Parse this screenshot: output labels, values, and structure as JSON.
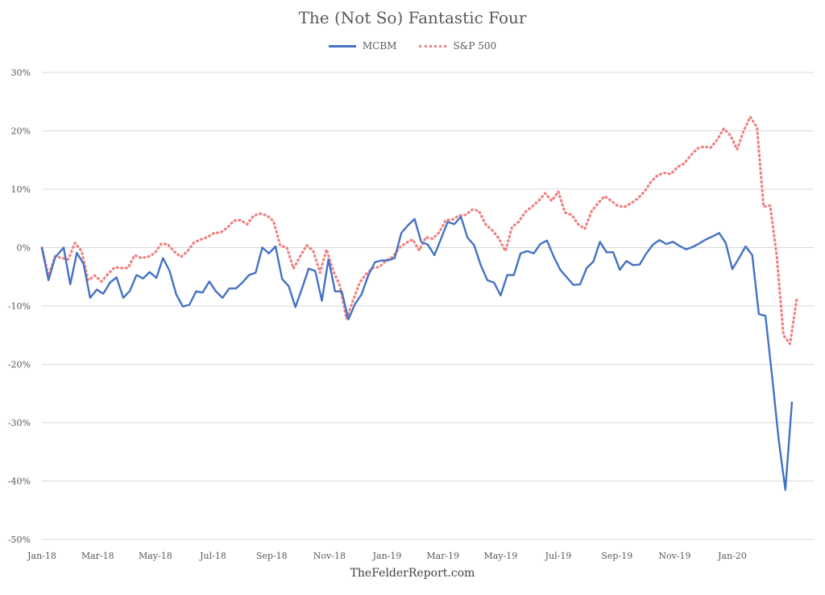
{
  "chart_data": {
    "type": "line",
    "title": "The (Not So) Fantastic Four",
    "source": "TheFelderReport.com",
    "legend_position": "top-center",
    "grid": true,
    "ylim": [
      -50,
      30
    ],
    "y_ticks": [
      30,
      20,
      10,
      0,
      -10,
      -20,
      -30,
      -40,
      -50
    ],
    "y_tick_labels": [
      "30%",
      "20%",
      "10%",
      "0%",
      "-10%",
      "-20%",
      "-30%",
      "-40%",
      "-50%"
    ],
    "x_start": "2018-01-01",
    "x_end": "2020-03-27",
    "x_ticks": [
      {
        "date": "2018-01-01",
        "label": "Jan-18"
      },
      {
        "date": "2018-03-01",
        "label": "Mar-18"
      },
      {
        "date": "2018-05-01",
        "label": "May-18"
      },
      {
        "date": "2018-07-01",
        "label": "Jul-18"
      },
      {
        "date": "2018-09-01",
        "label": "Sep-18"
      },
      {
        "date": "2018-11-01",
        "label": "Nov-18"
      },
      {
        "date": "2019-01-01",
        "label": "Jan-19"
      },
      {
        "date": "2019-03-01",
        "label": "Mar-19"
      },
      {
        "date": "2019-05-01",
        "label": "May-19"
      },
      {
        "date": "2019-07-01",
        "label": "Jul-19"
      },
      {
        "date": "2019-09-01",
        "label": "Sep-19"
      },
      {
        "date": "2019-11-01",
        "label": "Nov-19"
      },
      {
        "date": "2020-01-01",
        "label": "Jan-20"
      }
    ],
    "series": [
      {
        "name": "MCBM",
        "color": "#4472c4",
        "style": "solid",
        "points": [
          [
            "2018-01-01",
            0
          ],
          [
            "2018-01-08",
            -5.6
          ],
          [
            "2018-01-15",
            -1.7
          ],
          [
            "2018-01-24",
            0
          ],
          [
            "2018-01-31",
            -6.3
          ],
          [
            "2018-02-07",
            -0.9
          ],
          [
            "2018-02-14",
            -2.8
          ],
          [
            "2018-02-21",
            -8.6
          ],
          [
            "2018-02-28",
            -7.2
          ],
          [
            "2018-03-07",
            -7.9
          ],
          [
            "2018-03-14",
            -6.0
          ],
          [
            "2018-03-21",
            -5.1
          ],
          [
            "2018-03-28",
            -8.6
          ],
          [
            "2018-04-04",
            -7.4
          ],
          [
            "2018-04-11",
            -4.7
          ],
          [
            "2018-04-18",
            -5.3
          ],
          [
            "2018-04-25",
            -4.2
          ],
          [
            "2018-05-02",
            -5.2
          ],
          [
            "2018-05-09",
            -1.8
          ],
          [
            "2018-05-16",
            -4.0
          ],
          [
            "2018-05-23",
            -8.0
          ],
          [
            "2018-05-30",
            -10.1
          ],
          [
            "2018-06-06",
            -9.8
          ],
          [
            "2018-06-13",
            -7.5
          ],
          [
            "2018-06-20",
            -7.7
          ],
          [
            "2018-06-27",
            -5.8
          ],
          [
            "2018-07-04",
            -7.5
          ],
          [
            "2018-07-11",
            -8.6
          ],
          [
            "2018-07-18",
            -7.0
          ],
          [
            "2018-07-25",
            -7.0
          ],
          [
            "2018-08-01",
            -6.0
          ],
          [
            "2018-08-08",
            -4.7
          ],
          [
            "2018-08-15",
            -4.3
          ],
          [
            "2018-08-22",
            0
          ],
          [
            "2018-08-29",
            -1.0
          ],
          [
            "2018-09-05",
            0.2
          ],
          [
            "2018-09-12",
            -5.4
          ],
          [
            "2018-09-19",
            -6.6
          ],
          [
            "2018-09-26",
            -10.2
          ],
          [
            "2018-10-03",
            -7.0
          ],
          [
            "2018-10-10",
            -3.6
          ],
          [
            "2018-10-17",
            -4.0
          ],
          [
            "2018-10-24",
            -9.1
          ],
          [
            "2018-10-31",
            -2.0
          ],
          [
            "2018-11-07",
            -7.5
          ],
          [
            "2018-11-14",
            -7.5
          ],
          [
            "2018-11-21",
            -12.3
          ],
          [
            "2018-11-28",
            -9.7
          ],
          [
            "2018-12-05",
            -8.0
          ],
          [
            "2018-12-12",
            -4.8
          ],
          [
            "2018-12-19",
            -2.5
          ],
          [
            "2018-12-26",
            -2.2
          ],
          [
            "2019-01-02",
            -2.2
          ],
          [
            "2019-01-09",
            -1.8
          ],
          [
            "2019-01-16",
            2.5
          ],
          [
            "2019-01-23",
            3.8
          ],
          [
            "2019-01-30",
            4.9
          ],
          [
            "2019-02-06",
            1.0
          ],
          [
            "2019-02-13",
            0.5
          ],
          [
            "2019-02-20",
            -1.3
          ],
          [
            "2019-02-27",
            1.5
          ],
          [
            "2019-03-06",
            4.4
          ],
          [
            "2019-03-13",
            4.0
          ],
          [
            "2019-03-20",
            5.3
          ],
          [
            "2019-03-27",
            1.7
          ],
          [
            "2019-04-03",
            0.4
          ],
          [
            "2019-04-10",
            -3.0
          ],
          [
            "2019-04-17",
            -5.6
          ],
          [
            "2019-04-24",
            -6.0
          ],
          [
            "2019-05-01",
            -8.2
          ],
          [
            "2019-05-08",
            -4.7
          ],
          [
            "2019-05-15",
            -4.7
          ],
          [
            "2019-05-22",
            -1.0
          ],
          [
            "2019-05-29",
            -0.6
          ],
          [
            "2019-06-05",
            -1.0
          ],
          [
            "2019-06-12",
            0.6
          ],
          [
            "2019-06-19",
            1.2
          ],
          [
            "2019-06-26",
            -1.5
          ],
          [
            "2019-07-03",
            -3.8
          ],
          [
            "2019-07-10",
            -5.1
          ],
          [
            "2019-07-17",
            -6.4
          ],
          [
            "2019-07-24",
            -6.3
          ],
          [
            "2019-07-31",
            -3.5
          ],
          [
            "2019-08-07",
            -2.4
          ],
          [
            "2019-08-14",
            1.0
          ],
          [
            "2019-08-21",
            -0.8
          ],
          [
            "2019-08-28",
            -0.8
          ],
          [
            "2019-09-04",
            -3.8
          ],
          [
            "2019-09-11",
            -2.3
          ],
          [
            "2019-09-18",
            -3.0
          ],
          [
            "2019-09-25",
            -2.9
          ],
          [
            "2019-10-02",
            -1.0
          ],
          [
            "2019-10-09",
            0.5
          ],
          [
            "2019-10-16",
            1.3
          ],
          [
            "2019-10-23",
            0.6
          ],
          [
            "2019-10-30",
            1.0
          ],
          [
            "2019-11-06",
            0.3
          ],
          [
            "2019-11-13",
            -0.3
          ],
          [
            "2019-11-20",
            0.1
          ],
          [
            "2019-11-27",
            0.7
          ],
          [
            "2019-12-04",
            1.4
          ],
          [
            "2019-12-11",
            1.9
          ],
          [
            "2019-12-18",
            2.5
          ],
          [
            "2019-12-25",
            0.8
          ],
          [
            "2020-01-01",
            -3.7
          ],
          [
            "2020-01-08",
            -1.8
          ],
          [
            "2020-01-15",
            0.2
          ],
          [
            "2020-01-22",
            -1.3
          ],
          [
            "2020-01-29",
            -11.4
          ],
          [
            "2020-02-05",
            -11.7
          ],
          [
            "2020-02-12",
            -22.0
          ],
          [
            "2020-02-19",
            -33.0
          ],
          [
            "2020-02-26",
            -41.5
          ],
          [
            "2020-03-04",
            -26.4
          ]
        ]
      },
      {
        "name": "S&P 500",
        "color": "#f08080",
        "style": "dotted",
        "points": [
          [
            "2018-01-01",
            0
          ],
          [
            "2018-01-08",
            -4.8
          ],
          [
            "2018-01-15",
            -1.5
          ],
          [
            "2018-01-22",
            -1.8
          ],
          [
            "2018-01-29",
            -2.0
          ],
          [
            "2018-02-05",
            0.8
          ],
          [
            "2018-02-12",
            -0.6
          ],
          [
            "2018-02-19",
            -5.6
          ],
          [
            "2018-02-26",
            -4.8
          ],
          [
            "2018-03-05",
            -5.8
          ],
          [
            "2018-03-12",
            -4.5
          ],
          [
            "2018-03-19",
            -3.4
          ],
          [
            "2018-03-26",
            -3.5
          ],
          [
            "2018-04-02",
            -3.5
          ],
          [
            "2018-04-09",
            -1.3
          ],
          [
            "2018-04-16",
            -1.8
          ],
          [
            "2018-04-23",
            -1.6
          ],
          [
            "2018-04-30",
            -1.0
          ],
          [
            "2018-05-07",
            0.6
          ],
          [
            "2018-05-14",
            0.6
          ],
          [
            "2018-05-21",
            -0.7
          ],
          [
            "2018-05-28",
            -1.6
          ],
          [
            "2018-06-04",
            -0.6
          ],
          [
            "2018-06-11",
            0.9
          ],
          [
            "2018-06-18",
            1.4
          ],
          [
            "2018-06-25",
            1.8
          ],
          [
            "2018-07-02",
            2.5
          ],
          [
            "2018-07-09",
            2.6
          ],
          [
            "2018-07-16",
            3.4
          ],
          [
            "2018-07-23",
            4.6
          ],
          [
            "2018-07-30",
            4.7
          ],
          [
            "2018-08-06",
            4.0
          ],
          [
            "2018-08-13",
            5.5
          ],
          [
            "2018-08-20",
            5.8
          ],
          [
            "2018-08-27",
            5.5
          ],
          [
            "2018-09-03",
            4.5
          ],
          [
            "2018-09-10",
            0.3
          ],
          [
            "2018-09-17",
            0
          ],
          [
            "2018-09-24",
            -3.6
          ],
          [
            "2018-10-01",
            -1.5
          ],
          [
            "2018-10-08",
            0.4
          ],
          [
            "2018-10-15",
            -0.6
          ],
          [
            "2018-10-22",
            -4.3
          ],
          [
            "2018-10-29",
            -0.3
          ],
          [
            "2018-11-05",
            -4.0
          ],
          [
            "2018-11-12",
            -6.5
          ],
          [
            "2018-11-19",
            -12.2
          ],
          [
            "2018-11-26",
            -9.0
          ],
          [
            "2018-12-03",
            -6.0
          ],
          [
            "2018-12-10",
            -4.5
          ],
          [
            "2018-12-17",
            -3.5
          ],
          [
            "2018-12-24",
            -3.3
          ],
          [
            "2018-12-31",
            -2.2
          ],
          [
            "2019-01-07",
            -1.6
          ],
          [
            "2019-01-14",
            0.0
          ],
          [
            "2019-01-21",
            0.8
          ],
          [
            "2019-01-28",
            1.4
          ],
          [
            "2019-02-04",
            -0.5
          ],
          [
            "2019-02-11",
            1.8
          ],
          [
            "2019-02-18",
            1.5
          ],
          [
            "2019-02-25",
            2.6
          ],
          [
            "2019-03-04",
            4.7
          ],
          [
            "2019-03-11",
            4.8
          ],
          [
            "2019-03-18",
            5.5
          ],
          [
            "2019-03-25",
            5.6
          ],
          [
            "2019-04-01",
            6.5
          ],
          [
            "2019-04-08",
            6.3
          ],
          [
            "2019-04-15",
            4.0
          ],
          [
            "2019-04-22",
            3.0
          ],
          [
            "2019-04-29",
            1.6
          ],
          [
            "2019-05-06",
            -0.6
          ],
          [
            "2019-05-13",
            3.5
          ],
          [
            "2019-05-20",
            4.4
          ],
          [
            "2019-05-27",
            6.1
          ],
          [
            "2019-06-03",
            7.0
          ],
          [
            "2019-06-10",
            8.0
          ],
          [
            "2019-06-17",
            9.3
          ],
          [
            "2019-06-24",
            8.0
          ],
          [
            "2019-07-01",
            9.6
          ],
          [
            "2019-07-08",
            6.0
          ],
          [
            "2019-07-15",
            5.6
          ],
          [
            "2019-07-22",
            4.0
          ],
          [
            "2019-07-29",
            3.2
          ],
          [
            "2019-08-05",
            6.2
          ],
          [
            "2019-08-12",
            7.6
          ],
          [
            "2019-08-19",
            8.8
          ],
          [
            "2019-08-26",
            8.0
          ],
          [
            "2019-09-02",
            7.1
          ],
          [
            "2019-09-09",
            7.0
          ],
          [
            "2019-09-16",
            7.6
          ],
          [
            "2019-09-23",
            8.4
          ],
          [
            "2019-09-30",
            9.6
          ],
          [
            "2019-10-07",
            11.3
          ],
          [
            "2019-10-14",
            12.4
          ],
          [
            "2019-10-21",
            12.8
          ],
          [
            "2019-10-28",
            12.6
          ],
          [
            "2019-11-04",
            13.8
          ],
          [
            "2019-11-11",
            14.4
          ],
          [
            "2019-11-18",
            15.8
          ],
          [
            "2019-11-25",
            17.0
          ],
          [
            "2019-12-02",
            17.3
          ],
          [
            "2019-12-09",
            17.1
          ],
          [
            "2019-12-16",
            18.5
          ],
          [
            "2019-12-23",
            20.4
          ],
          [
            "2019-12-30",
            19.2
          ],
          [
            "2020-01-06",
            16.8
          ],
          [
            "2020-01-13",
            20.0
          ],
          [
            "2020-01-20",
            22.4
          ],
          [
            "2020-01-27",
            20.6
          ],
          [
            "2020-02-03",
            7.0
          ],
          [
            "2020-02-10",
            7.2
          ],
          [
            "2020-02-17",
            -1.5
          ],
          [
            "2020-02-24",
            -15.0
          ],
          [
            "2020-03-02",
            -16.5
          ],
          [
            "2020-03-09",
            -8.8
          ]
        ]
      }
    ]
  }
}
